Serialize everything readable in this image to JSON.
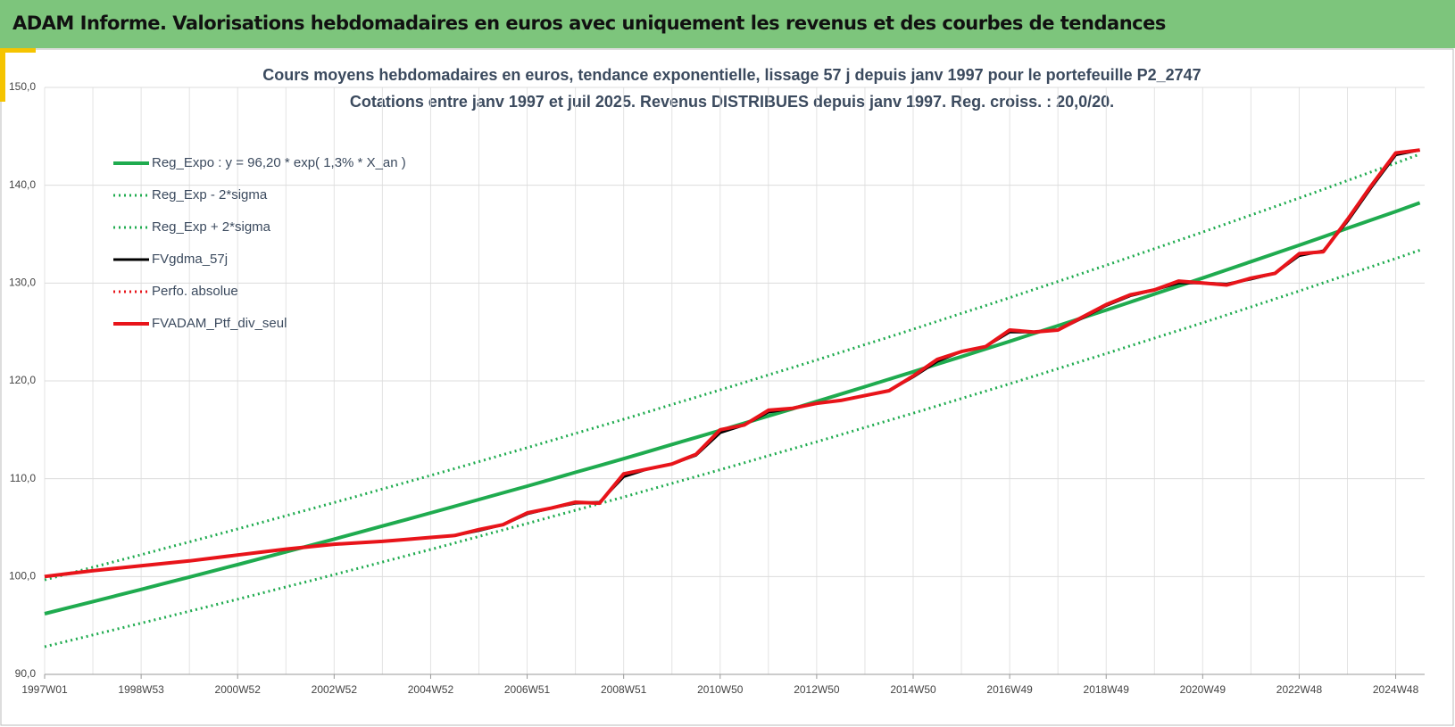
{
  "header": {
    "title": "ADAM Informe. Valorisations hebdomadaires en euros avec uniquement les revenus et des courbes de tendances"
  },
  "chart_data": {
    "type": "line",
    "title": "Cours moyens hebdomadaires  en euros, tendance exponentielle, lissage 57 j depuis janv 1997 pour le portefeuille P2_2747",
    "subtitle": "Cotations  entre janv 1997 et juil 2025. Revenus DISTRIBUES depuis janv 1997. Reg. croiss. : 20,0/20.",
    "categories": [
      "1997W01",
      null,
      null,
      null,
      "1998W53",
      null,
      null,
      null,
      "2000W52",
      null,
      null,
      null,
      "2002W52",
      null,
      null,
      null,
      "2004W52",
      null,
      null,
      null,
      "2006W51",
      null,
      null,
      null,
      "2008W51",
      null,
      null,
      null,
      "2010W50",
      null,
      null,
      null,
      "2012W50",
      null,
      null,
      null,
      "2014W50",
      null,
      null,
      null,
      "2016W49",
      null,
      null,
      null,
      "2018W49",
      null,
      null,
      null,
      "2020W49",
      null,
      null,
      null,
      "2022W48",
      null,
      null,
      null,
      "2024W48",
      null
    ],
    "ylim": [
      90,
      150
    ],
    "yticks": [
      {
        "value": 90,
        "label": "90,0"
      },
      {
        "value": 100,
        "label": "100,0"
      },
      {
        "value": 110,
        "label": "110,0"
      },
      {
        "value": 120,
        "label": "120,0"
      },
      {
        "value": 130,
        "label": "130,0"
      },
      {
        "value": 140,
        "label": "140,0"
      },
      {
        "value": 150,
        "label": "150,0"
      }
    ],
    "grid": true,
    "legend": "upper left",
    "series": [
      {
        "name": "Reg_Expo : y = 96,20 * exp( 1,3% *  X_an )",
        "color": "#1fab4f",
        "style": "solid",
        "width": 4,
        "values": [
          96.2,
          96.82,
          97.44,
          98.06,
          98.68,
          99.32,
          99.95,
          100.59,
          101.22,
          101.87,
          102.52,
          103.17,
          103.82,
          104.49,
          105.16,
          105.83,
          106.5,
          107.19,
          107.87,
          108.56,
          109.24,
          109.94,
          110.65,
          111.35,
          112.05,
          112.77,
          113.5,
          114.22,
          114.94,
          115.68,
          116.42,
          117.15,
          117.89,
          118.65,
          119.41,
          120.17,
          120.93,
          121.71,
          122.48,
          123.26,
          124.04,
          124.84,
          125.64,
          126.44,
          127.24,
          128.06,
          128.88,
          129.69,
          130.51,
          131.35,
          132.19,
          133.03,
          133.87,
          134.73,
          135.6,
          136.46,
          137.32,
          138.2
        ]
      },
      {
        "name": "Reg_Exp - 2*sigma",
        "color": "#1fab4f",
        "style": "dotted",
        "width": 3,
        "values": [
          92.83,
          93.43,
          94.03,
          94.63,
          95.23,
          95.84,
          96.46,
          97.07,
          97.68,
          98.31,
          98.94,
          99.56,
          100.19,
          100.84,
          101.48,
          102.13,
          102.77,
          103.43,
          104.1,
          104.76,
          105.42,
          106.1,
          106.77,
          107.45,
          108.13,
          108.83,
          109.52,
          110.22,
          110.92,
          111.63,
          112.35,
          113.06,
          113.77,
          114.5,
          115.24,
          115.97,
          116.7,
          117.45,
          118.2,
          118.95,
          119.7,
          120.47,
          121.25,
          122.02,
          122.79,
          123.58,
          124.37,
          125.15,
          125.94,
          126.75,
          127.56,
          128.38,
          129.19,
          130.02,
          130.85,
          131.68,
          132.51,
          133.36
        ]
      },
      {
        "name": "Reg_Exp + 2*sigma",
        "color": "#1fab4f",
        "style": "dotted",
        "width": 3,
        "values": [
          99.66,
          100.3,
          100.95,
          101.59,
          102.23,
          102.89,
          103.54,
          104.2,
          104.86,
          105.54,
          106.21,
          106.89,
          107.56,
          108.25,
          108.95,
          109.64,
          110.33,
          111.04,
          111.75,
          112.46,
          113.17,
          113.9,
          114.63,
          115.35,
          116.08,
          116.83,
          117.58,
          118.33,
          119.08,
          119.84,
          120.61,
          121.37,
          122.13,
          122.92,
          123.71,
          124.49,
          125.28,
          126.09,
          126.9,
          127.7,
          128.51,
          129.34,
          130.16,
          130.99,
          131.82,
          132.67,
          133.51,
          134.36,
          135.21,
          136.08,
          136.95,
          137.82,
          138.69,
          139.58,
          140.48,
          141.37,
          142.26,
          143.18
        ]
      },
      {
        "name": "FVgdma_57j",
        "color": "#000000",
        "style": "solid",
        "width": 3,
        "values": [
          100.0,
          100.3,
          100.6,
          100.85,
          101.1,
          101.35,
          101.6,
          101.9,
          102.2,
          102.5,
          102.8,
          103.05,
          103.3,
          103.45,
          103.6,
          103.8,
          104.0,
          104.2,
          104.7,
          105.3,
          106.4,
          107.0,
          107.5,
          107.6,
          110.2,
          111.0,
          111.5,
          112.4,
          114.7,
          115.5,
          116.8,
          117.2,
          117.7,
          118.0,
          118.5,
          119.0,
          120.4,
          122.0,
          123.0,
          123.5,
          125.0,
          125.0,
          125.2,
          126.4,
          127.7,
          128.7,
          129.3,
          130.0,
          130.0,
          129.9,
          130.4,
          131.0,
          132.8,
          133.3,
          136.3,
          139.8,
          143.1,
          143.6
        ]
      },
      {
        "name": "Perfo. absolue",
        "color": "#e8141a",
        "style": "dotted",
        "width": 3,
        "values": [
          100.0,
          100.3,
          100.6,
          100.85,
          101.1,
          101.35,
          101.6,
          101.9,
          102.2,
          102.5,
          102.8,
          103.05,
          103.3,
          103.45,
          103.6,
          103.8,
          104.0,
          104.2,
          104.8,
          105.3,
          106.5,
          107.0,
          107.6,
          107.5,
          110.5,
          111.0,
          111.5,
          112.5,
          115.0,
          115.5,
          117.0,
          117.2,
          117.7,
          118.0,
          118.5,
          119.0,
          120.5,
          122.2,
          123.0,
          123.5,
          125.2,
          125.0,
          125.2,
          126.5,
          127.8,
          128.8,
          129.3,
          130.2,
          130.0,
          129.8,
          130.5,
          131.0,
          133.0,
          133.2,
          136.5,
          140.0,
          143.3,
          143.6
        ]
      },
      {
        "name": "FVADAM_Ptf_div_seul",
        "color": "#e8141a",
        "style": "solid",
        "width": 4,
        "values": [
          100.0,
          100.3,
          100.6,
          100.85,
          101.1,
          101.35,
          101.6,
          101.9,
          102.2,
          102.5,
          102.8,
          103.05,
          103.3,
          103.45,
          103.6,
          103.8,
          104.0,
          104.2,
          104.8,
          105.3,
          106.5,
          107.0,
          107.6,
          107.5,
          110.5,
          111.0,
          111.5,
          112.5,
          115.0,
          115.5,
          117.0,
          117.2,
          117.7,
          118.0,
          118.5,
          119.0,
          120.5,
          122.2,
          123.0,
          123.5,
          125.2,
          125.0,
          125.2,
          126.5,
          127.8,
          128.8,
          129.3,
          130.2,
          130.0,
          129.8,
          130.5,
          131.0,
          133.0,
          133.2,
          136.5,
          140.0,
          143.3,
          143.6
        ]
      }
    ]
  }
}
